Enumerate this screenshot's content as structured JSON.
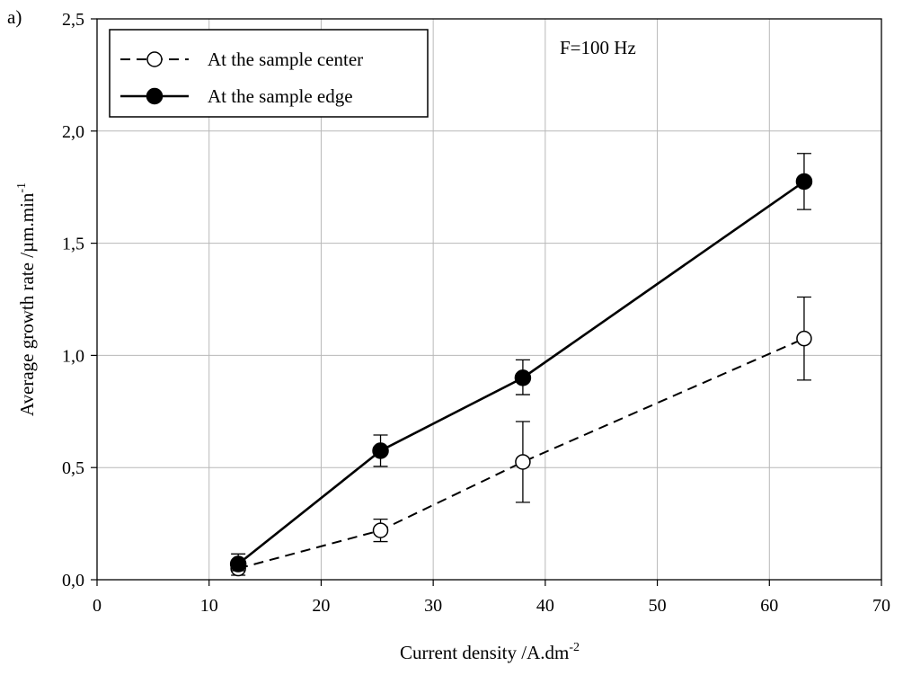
{
  "panel_label": "a)",
  "chart_data": {
    "type": "line",
    "xlabel": "Current density /A.dm",
    "xlabel_sup": "-2",
    "ylabel": "Average growth rate /µm.min",
    "ylabel_sup": "-1",
    "xlim": [
      0,
      70
    ],
    "ylim": [
      0,
      2.5
    ],
    "xticks": [
      0,
      10,
      20,
      30,
      40,
      50,
      60,
      70
    ],
    "yticks": [
      0,
      0.5,
      1,
      1.5,
      2,
      2.5
    ],
    "xtick_labels": [
      "0",
      "10",
      "20",
      "30",
      "40",
      "50",
      "60",
      "70"
    ],
    "ytick_labels": [
      "0,0",
      "0,5",
      "1,0",
      "1,5",
      "2,0",
      "2,5"
    ],
    "grid": true,
    "legend_position": "top-left",
    "annotation": "F=100 Hz",
    "series": [
      {
        "name": "At the sample center",
        "marker": "open-circle",
        "line_style": "dashed",
        "x": [
          12.6,
          25.3,
          38,
          63.1
        ],
        "y": [
          0.05,
          0.22,
          0.525,
          1.075
        ],
        "err_low": [
          0.02,
          0.17,
          0.345,
          0.89
        ],
        "err_high": [
          0.085,
          0.27,
          0.705,
          1.26
        ]
      },
      {
        "name": "At the sample edge",
        "marker": "filled-circle",
        "line_style": "solid",
        "x": [
          12.6,
          25.3,
          38,
          63.1
        ],
        "y": [
          0.07,
          0.575,
          0.9,
          1.775
        ],
        "err_low": [
          0.04,
          0.505,
          0.825,
          1.65
        ],
        "err_high": [
          0.115,
          0.645,
          0.98,
          1.9
        ]
      }
    ]
  }
}
